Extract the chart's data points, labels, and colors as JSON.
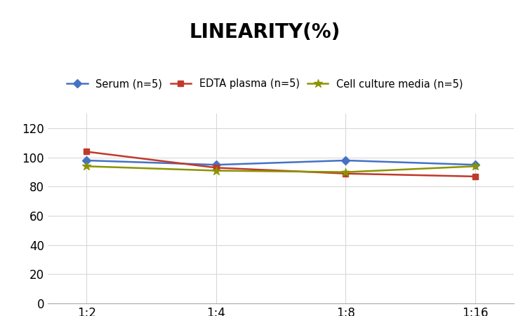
{
  "title": "LINEARITY(%)",
  "title_fontsize": 20,
  "title_fontweight": "bold",
  "x_labels": [
    "1:2",
    "1:4",
    "1:8",
    "1:16"
  ],
  "x_positions": [
    0,
    1,
    2,
    3
  ],
  "series": [
    {
      "label": "Serum (n=5)",
      "values": [
        98,
        95,
        98,
        95
      ],
      "color": "#4472C4",
      "marker": "D",
      "markersize": 6,
      "linewidth": 1.8
    },
    {
      "label": "EDTA plasma (n=5)",
      "values": [
        104,
        93,
        89,
        87
      ],
      "color": "#C0392B",
      "marker": "s",
      "markersize": 6,
      "linewidth": 1.8
    },
    {
      "label": "Cell culture media (n=5)",
      "values": [
        94,
        91,
        90,
        94
      ],
      "color": "#8B9400",
      "marker": "*",
      "markersize": 9,
      "linewidth": 1.8
    }
  ],
  "ylim": [
    0,
    130
  ],
  "yticks": [
    0,
    20,
    40,
    60,
    80,
    100,
    120
  ],
  "grid_color": "#d8d8d8",
  "background_color": "#ffffff",
  "legend_fontsize": 10.5,
  "tick_fontsize": 12
}
